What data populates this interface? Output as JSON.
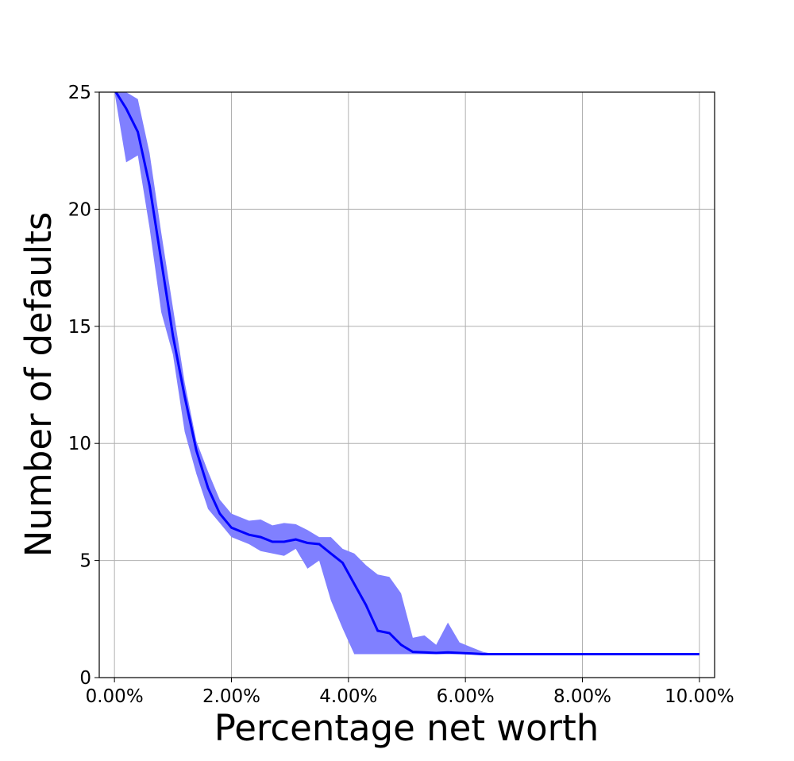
{
  "chart_data": {
    "type": "line",
    "title": "",
    "xlabel": "Percentage net worth",
    "ylabel": "Number of defaults",
    "xlim": [
      -0.0026,
      0.1026
    ],
    "ylim": [
      0,
      25
    ],
    "grid": true,
    "x_ticks": [
      0.0,
      0.02,
      0.04,
      0.06,
      0.08,
      0.1
    ],
    "x_tick_labels": [
      "0.00%",
      "2.00%",
      "4.00%",
      "6.00%",
      "8.00%",
      "10.00%"
    ],
    "y_ticks": [
      0,
      5,
      10,
      15,
      20,
      25
    ],
    "y_tick_labels": [
      "0",
      "5",
      "10",
      "15",
      "20",
      "25"
    ],
    "colors": {
      "line": "#0000ff",
      "band": "#8080ff"
    },
    "series": [
      {
        "x": [
          0.0,
          0.002,
          0.004,
          0.006,
          0.008,
          0.01,
          0.012,
          0.014,
          0.016,
          0.018,
          0.02,
          0.023,
          0.025,
          0.027,
          0.029,
          0.031,
          0.033,
          0.035,
          0.037,
          0.039,
          0.041,
          0.043,
          0.045,
          0.047,
          0.049,
          0.051,
          0.053,
          0.055,
          0.057,
          0.059,
          0.061,
          0.063,
          0.065,
          0.067,
          0.069,
          0.071,
          0.073,
          0.075,
          0.077,
          0.079,
          0.081,
          0.083,
          0.085,
          0.087,
          0.089,
          0.091,
          0.093,
          0.095,
          0.097,
          0.099,
          0.1
        ],
        "mean": [
          25.1,
          24.3,
          23.3,
          21.0,
          17.8,
          14.6,
          12.0,
          9.7,
          8.1,
          7.0,
          6.4,
          6.1,
          6.0,
          5.8,
          5.8,
          5.9,
          5.75,
          5.7,
          5.3,
          4.9,
          4.0,
          3.1,
          2.0,
          1.9,
          1.4,
          1.1,
          1.08,
          1.05,
          1.08,
          1.05,
          1.03,
          1.0,
          1.0,
          1.0,
          1.0,
          1.0,
          1.0,
          1.0,
          1.0,
          1.0,
          1.0,
          1.0,
          1.0,
          1.0,
          1.0,
          1.0,
          1.0,
          1.0,
          1.0,
          1.0,
          1.0
        ],
        "upper": [
          25.3,
          25.0,
          24.7,
          22.4,
          19.0,
          15.8,
          12.6,
          10.1,
          8.8,
          7.6,
          7.0,
          6.7,
          6.75,
          6.5,
          6.6,
          6.55,
          6.3,
          6.0,
          6.0,
          5.5,
          5.3,
          4.8,
          4.4,
          4.3,
          3.6,
          1.7,
          1.8,
          1.4,
          2.35,
          1.5,
          1.3,
          1.1,
          1.0,
          1.0,
          1.0,
          1.0,
          1.0,
          1.0,
          1.0,
          1.0,
          1.0,
          1.0,
          1.0,
          1.0,
          1.0,
          1.0,
          1.0,
          1.0,
          1.0,
          1.0,
          1.0
        ],
        "lower": [
          25.0,
          22.0,
          22.3,
          19.2,
          15.6,
          13.8,
          10.5,
          8.7,
          7.2,
          6.6,
          6.0,
          5.7,
          5.4,
          5.3,
          5.2,
          5.5,
          4.65,
          5.0,
          3.3,
          2.1,
          1.0,
          1.0,
          1.0,
          1.0,
          1.0,
          1.0,
          1.0,
          1.0,
          1.0,
          1.0,
          1.0,
          1.0,
          1.0,
          1.0,
          1.0,
          1.0,
          1.0,
          1.0,
          1.0,
          1.0,
          1.0,
          1.0,
          1.0,
          1.0,
          1.0,
          1.0,
          1.0,
          1.0,
          1.0,
          1.0,
          1.0
        ]
      }
    ]
  }
}
